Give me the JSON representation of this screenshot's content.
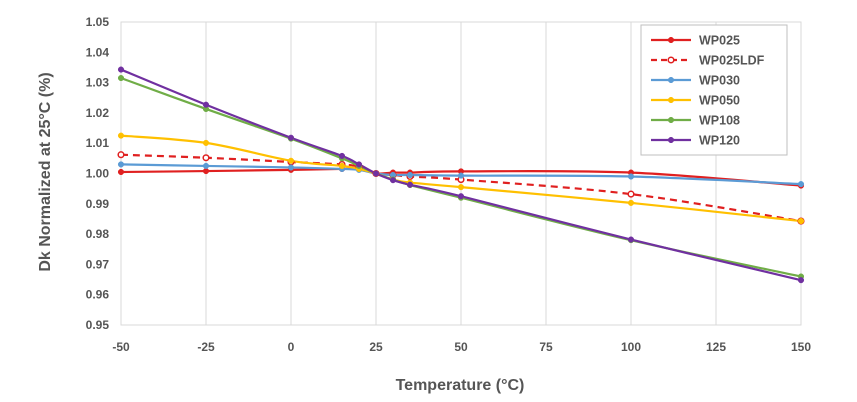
{
  "chart_data": {
    "type": "line",
    "xlabel": "Temperature (°C)",
    "ylabel": "Dk Normalized at 25°C (%)",
    "xlim": [
      -50,
      150
    ],
    "ylim": [
      0.95,
      1.05
    ],
    "x_ticks": [
      "-50",
      "-25",
      "0",
      "25",
      "50",
      "75",
      "100",
      "125",
      "150"
    ],
    "y_ticks": [
      "0.95",
      "0.96",
      "0.97",
      "0.98",
      "0.99",
      "1.00",
      "1.01",
      "1.02",
      "1.03",
      "1.04",
      "1.05"
    ],
    "grid": "vertical",
    "legend_position": "top-right",
    "series": [
      {
        "name": "WP025",
        "color": "#e02020",
        "dash": false,
        "x": [
          -50,
          -25,
          0,
          15,
          20,
          25,
          30,
          35,
          50,
          100,
          150
        ],
        "y": [
          1.0005,
          1.0008,
          1.0012,
          1.0015,
          1.0015,
          1.0,
          1.0003,
          1.0003,
          1.0007,
          1.0003,
          0.996
        ]
      },
      {
        "name": "WP025LDF",
        "color": "#e02020",
        "dash": true,
        "x": [
          -50,
          -25,
          0,
          15,
          20,
          25,
          30,
          35,
          50,
          100,
          150
        ],
        "y": [
          1.0062,
          1.0052,
          1.0038,
          1.003,
          1.0022,
          1.0,
          0.9995,
          0.999,
          0.998,
          0.9932,
          0.9843
        ]
      },
      {
        "name": "WP030",
        "color": "#5b9bd5",
        "dash": false,
        "x": [
          -50,
          -25,
          0,
          15,
          20,
          25,
          30,
          35,
          50,
          100,
          150
        ],
        "y": [
          1.003,
          1.0025,
          1.002,
          1.0015,
          1.0012,
          1.0,
          0.9995,
          0.9995,
          0.9993,
          0.999,
          0.9965
        ]
      },
      {
        "name": "WP050",
        "color": "#ffc000",
        "dash": false,
        "x": [
          -50,
          -25,
          0,
          15,
          20,
          25,
          30,
          35,
          50,
          100,
          150
        ],
        "y": [
          1.0125,
          1.0101,
          1.0042,
          1.0025,
          1.0015,
          1.0,
          0.998,
          0.997,
          0.9955,
          0.9903,
          0.9843
        ]
      },
      {
        "name": "WP108",
        "color": "#70ad47",
        "dash": false,
        "x": [
          -50,
          -25,
          0,
          15,
          20,
          25,
          30,
          35,
          50,
          100,
          150
        ],
        "y": [
          1.0315,
          1.0213,
          1.0115,
          1.005,
          1.0025,
          1.0,
          0.998,
          0.9962,
          0.992,
          0.978,
          0.966
        ]
      },
      {
        "name": "WP120",
        "color": "#7030a0",
        "dash": false,
        "x": [
          -50,
          -25,
          0,
          15,
          20,
          25,
          30,
          35,
          50,
          100,
          150
        ],
        "y": [
          1.0343,
          1.0227,
          1.0118,
          1.0058,
          1.003,
          1.0,
          0.9978,
          0.9963,
          0.9925,
          0.9782,
          0.9648
        ]
      }
    ]
  }
}
